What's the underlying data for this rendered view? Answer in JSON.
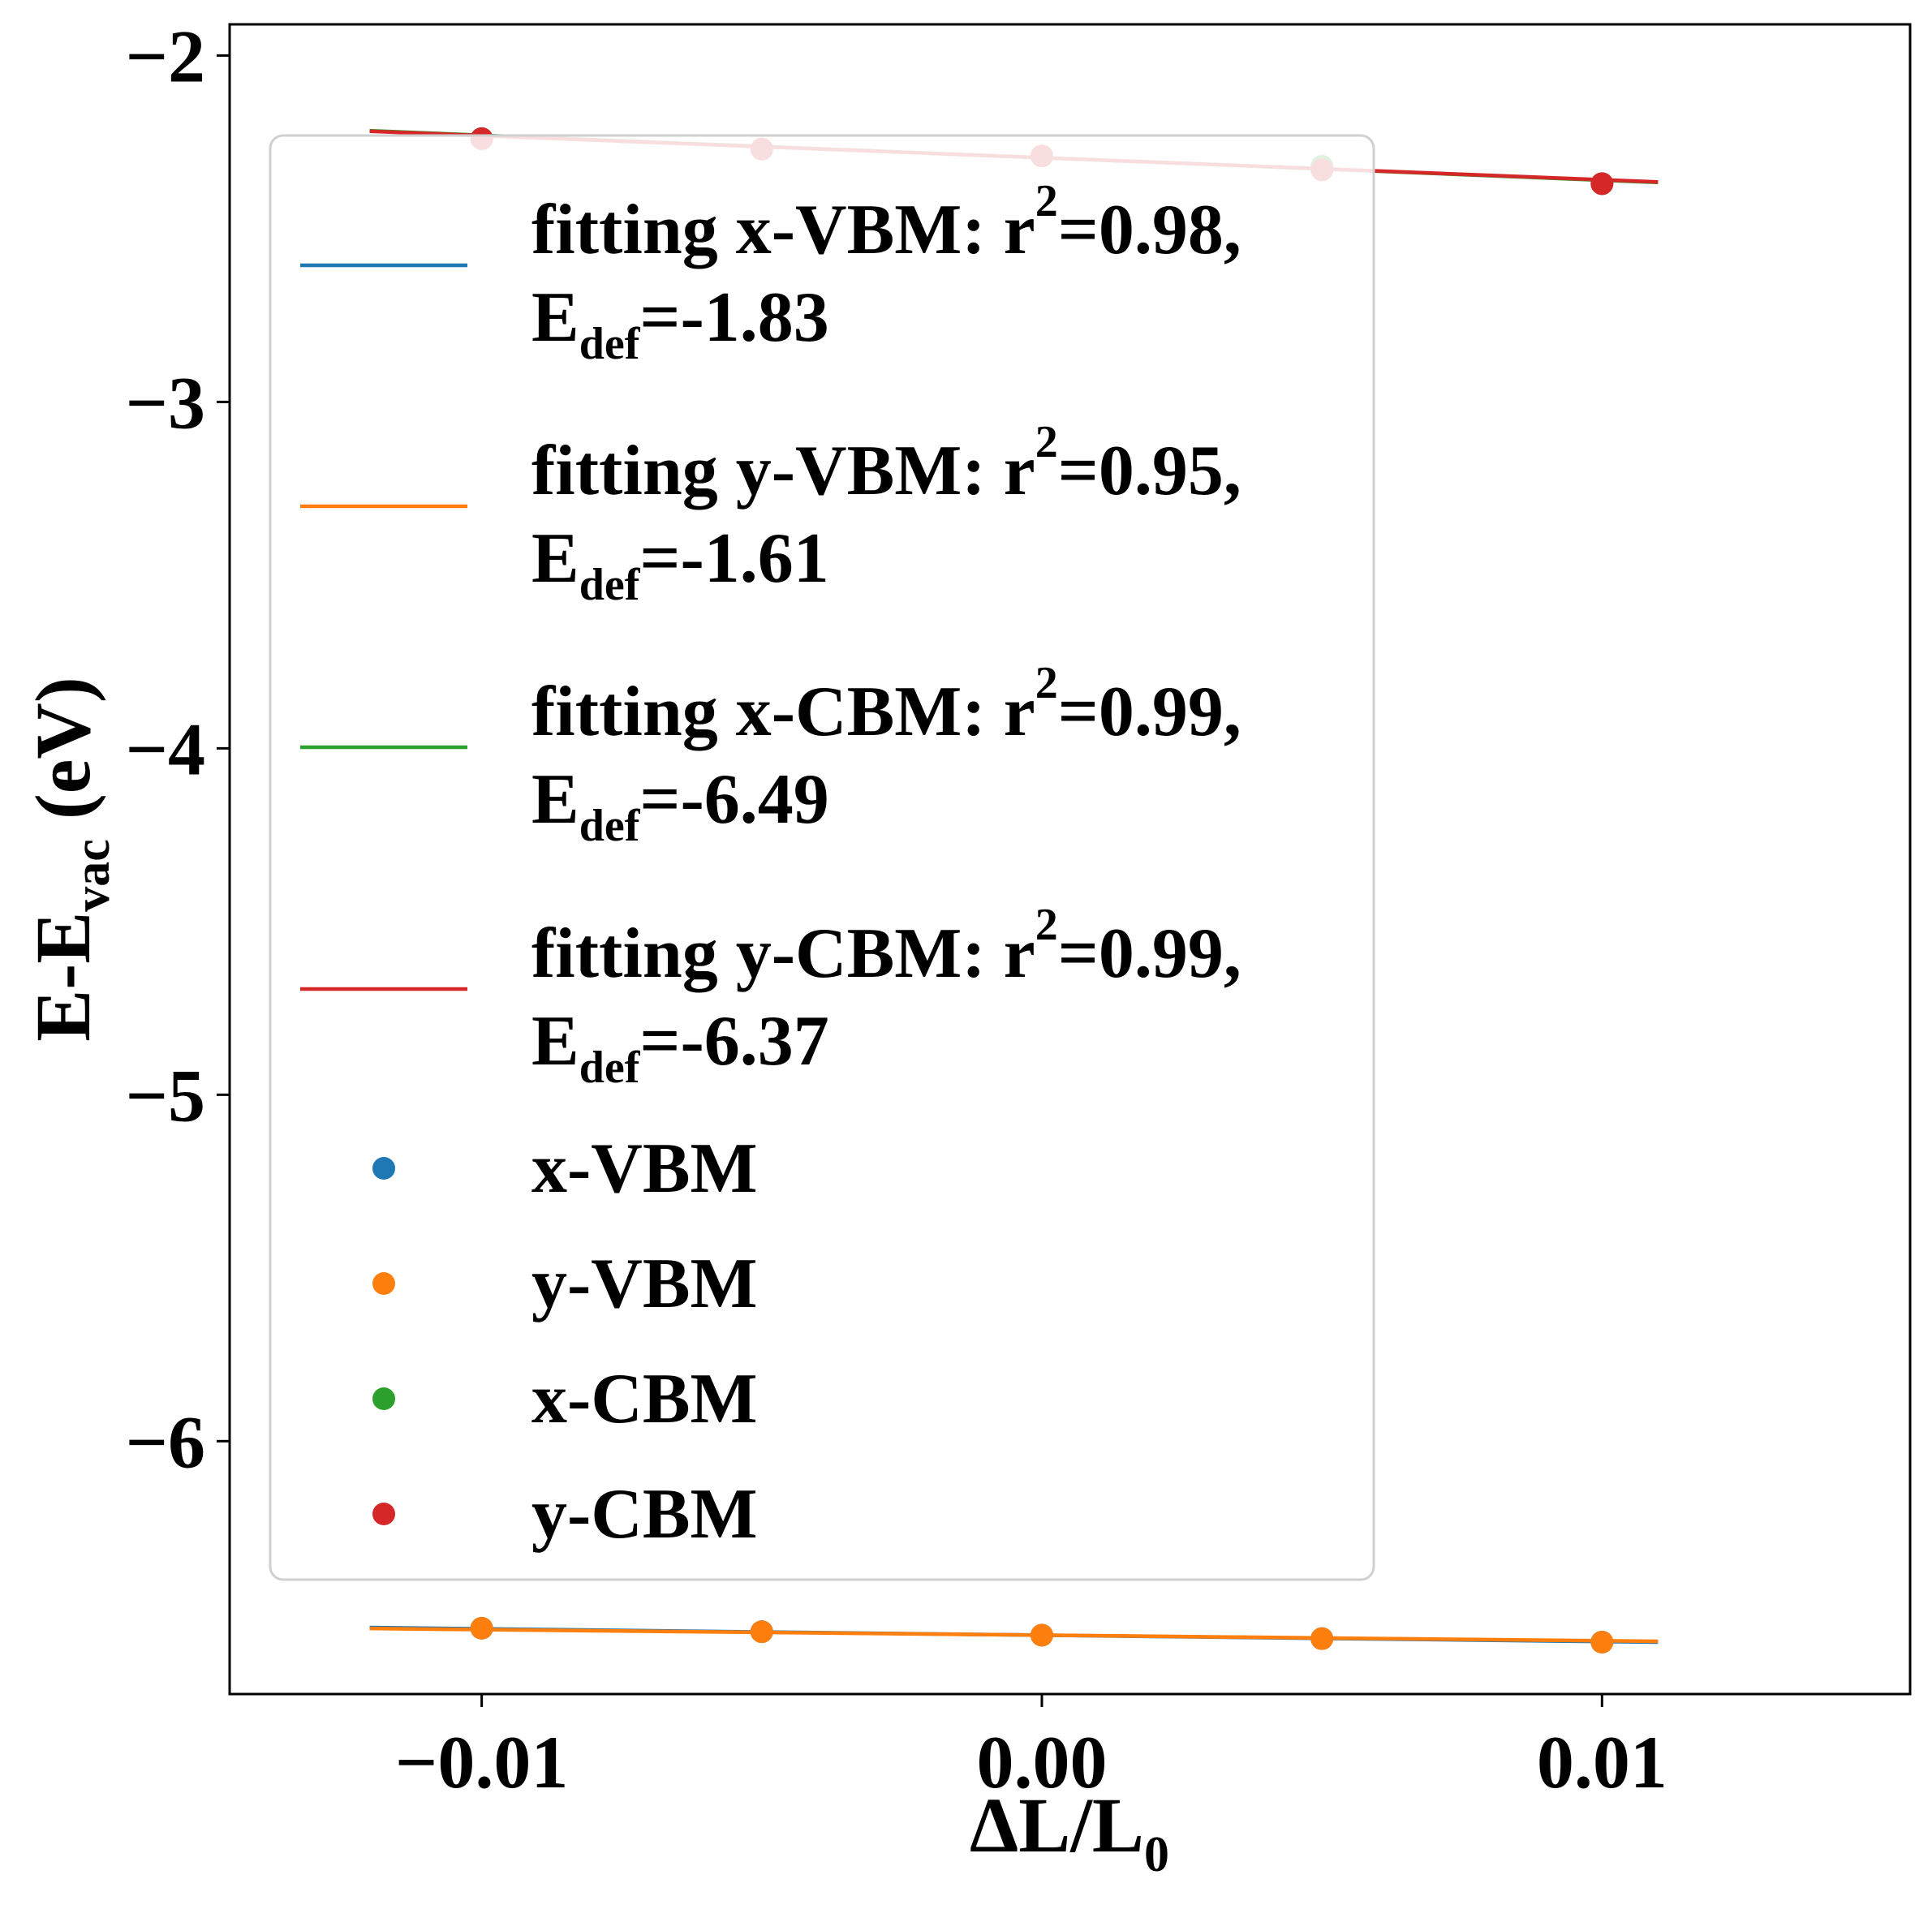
{
  "chart_data": {
    "type": "scatter",
    "xlabel_main": "ΔL/L",
    "xlabel_sub": "0",
    "ylabel_main": "E-E",
    "ylabel_sub": "vac",
    "ylabel_tail": " (eV)",
    "xlim": [
      -0.0145,
      0.0155
    ],
    "ylim": [
      -6.73,
      -1.91
    ],
    "xticks": [
      {
        "value": -0.01,
        "label": "−0.01"
      },
      {
        "value": 0.0,
        "label": "0.00"
      },
      {
        "value": 0.01,
        "label": "0.01"
      }
    ],
    "yticks": [
      {
        "value": -2,
        "label": "−2"
      },
      {
        "value": -3,
        "label": "−3"
      },
      {
        "value": -4,
        "label": "−4"
      },
      {
        "value": -5,
        "label": "−5"
      },
      {
        "value": -6,
        "label": "−6"
      }
    ],
    "grid": false,
    "legend_position": "upper-left",
    "x": [
      -0.01,
      -0.005,
      0.0,
      0.005,
      0.01
    ],
    "fit_x_range": [
      -0.012,
      0.011
    ],
    "series": [
      {
        "name": "x-VBM",
        "color": "#1f77b4",
        "values": [
          -6.54,
          -6.55,
          -6.56,
          -6.57,
          -6.58
        ],
        "fit": {
          "slope": -1.83,
          "intercept": -6.56,
          "r2_label": "0.98",
          "edef_label": "-1.83"
        }
      },
      {
        "name": "y-VBM",
        "color": "#ff7f0e",
        "values": [
          -6.54,
          -6.55,
          -6.56,
          -6.57,
          -6.58
        ],
        "fit": {
          "slope": -1.61,
          "intercept": -6.56,
          "r2_label": "0.95",
          "edef_label": "-1.61"
        }
      },
      {
        "name": "x-CBM",
        "color": "#2ca02c",
        "values": [
          -2.24,
          -2.27,
          -2.29,
          -2.32,
          -2.37
        ],
        "fit": {
          "slope": -6.49,
          "intercept": -2.295,
          "r2_label": "0.99",
          "edef_label": "-6.49"
        }
      },
      {
        "name": "y-CBM",
        "color": "#d62728",
        "values": [
          -2.24,
          -2.27,
          -2.29,
          -2.33,
          -2.37
        ],
        "fit": {
          "slope": -6.37,
          "intercept": -2.295,
          "r2_label": "0.99",
          "edef_label": "-6.37"
        }
      }
    ]
  },
  "legend": {
    "fit_entries": [
      {
        "color": "#1f77b4",
        "text_a": "fitting x-VBM: r",
        "sup": "2",
        "text_b": "=0.98,",
        "e_main": "E",
        "e_sub": "def",
        "e_value": "=-1.83"
      },
      {
        "color": "#ff7f0e",
        "text_a": "fitting y-VBM: r",
        "sup": "2",
        "text_b": "=0.95,",
        "e_main": "E",
        "e_sub": "def",
        "e_value": "=-1.61"
      },
      {
        "color": "#2ca02c",
        "text_a": "fitting x-CBM: r",
        "sup": "2",
        "text_b": "=0.99,",
        "e_main": "E",
        "e_sub": "def",
        "e_value": "=-6.49"
      },
      {
        "color": "#d62728",
        "text_a": "fitting y-CBM: r",
        "sup": "2",
        "text_b": "=0.99,",
        "e_main": "E",
        "e_sub": "def",
        "e_value": "=-6.37"
      }
    ],
    "point_entries": [
      {
        "color": "#1f77b4",
        "label": "x-VBM"
      },
      {
        "color": "#ff7f0e",
        "label": "y-VBM"
      },
      {
        "color": "#2ca02c",
        "label": "x-CBM"
      },
      {
        "color": "#d62728",
        "label": "y-CBM"
      }
    ]
  }
}
